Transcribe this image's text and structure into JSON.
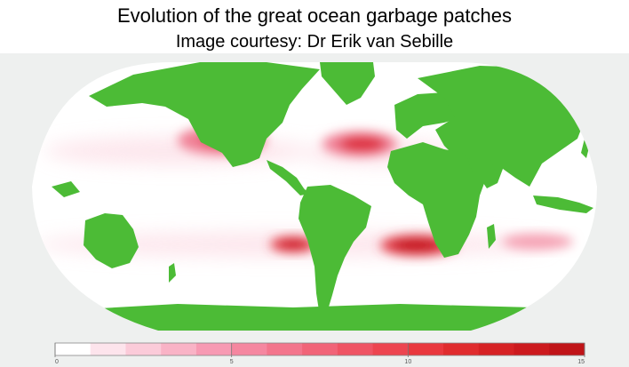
{
  "header": {
    "title": "Evolution of the great ocean garbage patches",
    "subtitle": "Image courtesy: Dr Erik van Sebille"
  },
  "map": {
    "projection": "robinson",
    "ocean_color": "#ffffff",
    "land_color": "#4cbb36",
    "frame_color": "#eef0ef",
    "garbage_patches": [
      {
        "name": "north-pacific-patch",
        "intensity": 13
      },
      {
        "name": "north-atlantic-patch",
        "intensity": 13
      },
      {
        "name": "south-atlantic-patch",
        "intensity": 12
      },
      {
        "name": "indian-ocean-patch",
        "intensity": 14
      },
      {
        "name": "south-pacific-patch",
        "intensity": 8
      }
    ]
  },
  "colorbar": {
    "min": 0,
    "max": 15,
    "ticks": [
      {
        "value": 0,
        "label": "0"
      },
      {
        "value": 5,
        "label": "5"
      },
      {
        "value": 10,
        "label": "10"
      },
      {
        "value": 15,
        "label": "15"
      }
    ],
    "steps": [
      "#ffffff",
      "#fde4ec",
      "#fbcbd9",
      "#f9b3c6",
      "#f79ab3",
      "#f587a0",
      "#f3758c",
      "#f16478",
      "#ef5464",
      "#ed4550",
      "#e9383e",
      "#e02c2e",
      "#d62224",
      "#cc1a1e",
      "#c01418"
    ]
  }
}
